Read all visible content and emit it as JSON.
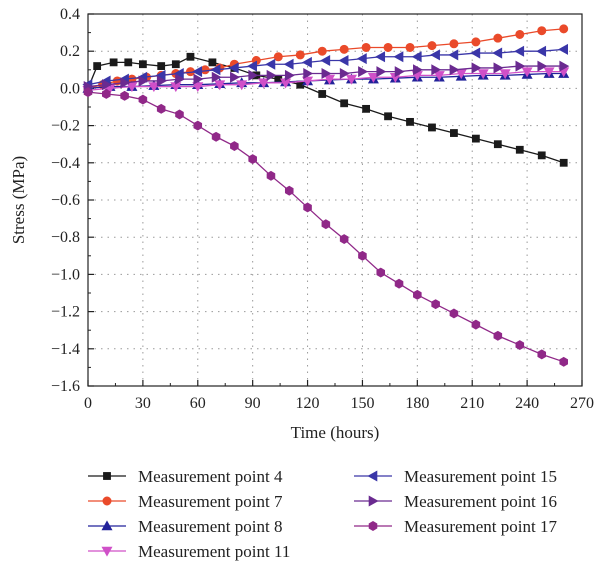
{
  "chart_data": {
    "type": "line",
    "xlabel": "Time (hours)",
    "ylabel": "Stress (MPa)",
    "xlim": [
      0,
      270
    ],
    "ylim": [
      -1.6,
      0.4
    ],
    "xticks": [
      0,
      30,
      60,
      90,
      120,
      150,
      180,
      210,
      240,
      270
    ],
    "yticks": [
      0.4,
      0.2,
      0.0,
      -0.2,
      -0.4,
      -0.6,
      -0.8,
      -1.0,
      -1.2,
      -1.4,
      -1.6
    ],
    "ytick_labels": [
      "0.4",
      "0.2",
      "0.0",
      "−0.2",
      "−0.4",
      "−0.6",
      "−0.8",
      "−1.0",
      "−1.2",
      "−1.4",
      "−1.6"
    ],
    "grid": "dotted",
    "legend_placement": "bottom",
    "series": [
      {
        "name": "Measurement point 4",
        "color": "#1a1a1a",
        "marker": "square",
        "x": [
          0,
          5,
          14,
          22,
          30,
          40,
          48,
          56,
          68,
          80,
          92,
          104,
          116,
          128,
          140,
          152,
          164,
          176,
          188,
          200,
          212,
          224,
          236,
          248,
          260
        ],
        "y": [
          0.0,
          0.12,
          0.14,
          0.14,
          0.13,
          0.12,
          0.13,
          0.17,
          0.14,
          0.11,
          0.07,
          0.05,
          0.02,
          -0.03,
          -0.08,
          -0.11,
          -0.15,
          -0.18,
          -0.21,
          -0.24,
          -0.27,
          -0.3,
          -0.33,
          -0.36,
          -0.4
        ]
      },
      {
        "name": "Measurement point 7",
        "color": "#ea4a2a",
        "marker": "circle",
        "x": [
          0,
          8,
          16,
          24,
          32,
          40,
          48,
          56,
          64,
          72,
          80,
          92,
          104,
          116,
          128,
          140,
          152,
          164,
          176,
          188,
          200,
          212,
          224,
          236,
          248,
          260
        ],
        "y": [
          0.0,
          0.02,
          0.04,
          0.05,
          0.06,
          0.07,
          0.08,
          0.09,
          0.1,
          0.11,
          0.13,
          0.15,
          0.17,
          0.18,
          0.2,
          0.21,
          0.22,
          0.22,
          0.22,
          0.23,
          0.24,
          0.25,
          0.27,
          0.29,
          0.31,
          0.32
        ]
      },
      {
        "name": "Measurement point 8",
        "color": "#22229a",
        "marker": "triangle-up",
        "x": [
          0,
          12,
          24,
          36,
          48,
          60,
          72,
          84,
          96,
          108,
          120,
          132,
          144,
          156,
          168,
          180,
          192,
          204,
          216,
          228,
          240,
          252,
          260
        ],
        "y": [
          0.0,
          0.01,
          0.01,
          0.015,
          0.02,
          0.02,
          0.025,
          0.03,
          0.03,
          0.035,
          0.04,
          0.045,
          0.05,
          0.05,
          0.055,
          0.06,
          0.06,
          0.065,
          0.07,
          0.07,
          0.075,
          0.08,
          0.08
        ]
      },
      {
        "name": "Measurement point 11",
        "color": "#d050c8",
        "marker": "triangle-down",
        "x": [
          0,
          12,
          24,
          36,
          48,
          60,
          72,
          84,
          96,
          108,
          120,
          132,
          144,
          156,
          168,
          180,
          192,
          204,
          216,
          228,
          240,
          252,
          260
        ],
        "y": [
          -0.01,
          0.0,
          0.01,
          0.01,
          0.01,
          0.01,
          0.02,
          0.02,
          0.03,
          0.03,
          0.04,
          0.05,
          0.05,
          0.06,
          0.06,
          0.07,
          0.07,
          0.08,
          0.08,
          0.08,
          0.09,
          0.09,
          0.09
        ]
      },
      {
        "name": "Measurement point 15",
        "color": "#3a36a8",
        "marker": "triangle-left",
        "x": [
          0,
          10,
          20,
          30,
          40,
          50,
          60,
          70,
          80,
          90,
          100,
          110,
          120,
          130,
          140,
          150,
          160,
          170,
          180,
          190,
          200,
          212,
          224,
          236,
          248,
          260
        ],
        "y": [
          0.02,
          0.04,
          0.05,
          0.06,
          0.07,
          0.08,
          0.09,
          0.1,
          0.11,
          0.12,
          0.13,
          0.13,
          0.14,
          0.15,
          0.15,
          0.16,
          0.17,
          0.17,
          0.17,
          0.18,
          0.18,
          0.19,
          0.19,
          0.2,
          0.2,
          0.21
        ]
      },
      {
        "name": "Measurement point 16",
        "color": "#6a2a90",
        "marker": "triangle-right",
        "x": [
          0,
          10,
          20,
          30,
          40,
          50,
          60,
          70,
          80,
          90,
          100,
          110,
          120,
          130,
          140,
          150,
          160,
          170,
          180,
          190,
          200,
          212,
          224,
          236,
          248,
          260
        ],
        "y": [
          0.01,
          0.02,
          0.03,
          0.04,
          0.04,
          0.05,
          0.05,
          0.06,
          0.06,
          0.07,
          0.07,
          0.07,
          0.08,
          0.08,
          0.08,
          0.09,
          0.09,
          0.09,
          0.1,
          0.1,
          0.1,
          0.11,
          0.11,
          0.12,
          0.12,
          0.12
        ]
      },
      {
        "name": "Measurement point 17",
        "color": "#902888",
        "marker": "hexagon",
        "x": [
          0,
          10,
          20,
          30,
          40,
          50,
          60,
          70,
          80,
          90,
          100,
          110,
          120,
          130,
          140,
          150,
          160,
          170,
          180,
          190,
          200,
          212,
          224,
          236,
          248,
          260
        ],
        "y": [
          -0.02,
          -0.03,
          -0.04,
          -0.06,
          -0.11,
          -0.14,
          -0.2,
          -0.26,
          -0.31,
          -0.38,
          -0.47,
          -0.55,
          -0.64,
          -0.73,
          -0.81,
          -0.9,
          -0.99,
          -1.05,
          -1.11,
          -1.16,
          -1.21,
          -1.27,
          -1.33,
          -1.38,
          -1.43,
          -1.47
        ]
      }
    ]
  }
}
